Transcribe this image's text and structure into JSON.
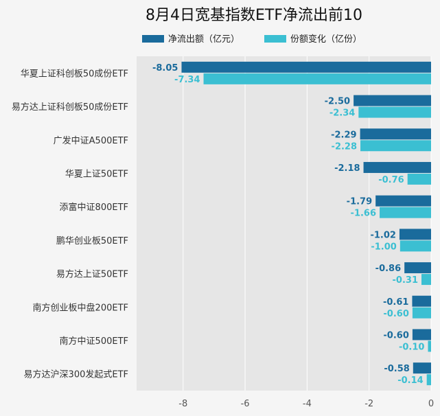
{
  "chart_data": {
    "type": "bar",
    "orientation": "horizontal",
    "title": "8月4日宽基指数ETF净流出前10",
    "categories": [
      "华夏上证科创板50成份ETF",
      "易方达上证科创板50成份ETF",
      "广发中证A500ETF",
      "华夏上证50ETF",
      "添富中证800ETF",
      "鹏华创业板50ETF",
      "易方达上证50ETF",
      "南方创业板中盘200ETF",
      "南方中证500ETF",
      "易方达沪深300发起式ETF"
    ],
    "series": [
      {
        "name": "净流出额（亿元）",
        "color": "#1a6b9c",
        "values": [
          -8.05,
          -2.5,
          -2.29,
          -2.18,
          -1.79,
          -1.02,
          -0.86,
          -0.61,
          -0.6,
          -0.58
        ],
        "labels": [
          "-8.05",
          "-2.50",
          "-2.29",
          "-2.18",
          "-1.79",
          "-1.02",
          "-0.86",
          "-0.61",
          "-0.60",
          "-0.58"
        ]
      },
      {
        "name": "份额变化（亿份）",
        "color": "#3bbfd2",
        "values": [
          -7.34,
          -2.34,
          -2.28,
          -0.76,
          -1.66,
          -1.0,
          -0.31,
          -0.6,
          -0.1,
          -0.14
        ],
        "labels": [
          "-7.34",
          "-2.34",
          "-2.28",
          "-0.76",
          "-1.66",
          "-1.00",
          "-0.31",
          "-0.60",
          "-0.10",
          "-0.14"
        ]
      }
    ],
    "xlim": [
      -9.5,
      0
    ],
    "xticks": [
      -8,
      -6,
      -4,
      -2,
      0
    ],
    "grid": true,
    "legend_position": "top"
  }
}
